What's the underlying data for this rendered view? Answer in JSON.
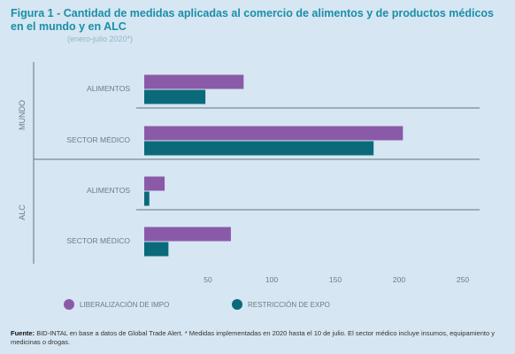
{
  "figure": {
    "label": "Figura 1 -",
    "title": "Cantidad de medidas aplicadas al comercio de alimentos y de productos médicos en el mundo y en ALC",
    "subtitle": "(enero-julio 2020*)"
  },
  "source": {
    "label": "Fuente:",
    "text": "BID-INTAL en base a datos de Global Trade Alert. * Medidas implementadas en 2020 hasta el 10 de julio. El sector médico incluye insumos, equipamiento y medicinas o drogas."
  },
  "colors": {
    "liberalizacion": "#8a5aa8",
    "restriccion": "#0a6a7a",
    "grid": "#5f7583",
    "text": "#6a7d88"
  },
  "chart_data": {
    "type": "bar",
    "orientation": "horizontal",
    "groups": [
      {
        "name": "MUNDO",
        "categories": [
          "ALIMENTOS",
          "SECTOR MÉDICO"
        ],
        "series": [
          {
            "name": "LIBERALIZACIÓN DE IMPO",
            "values": [
              78,
              203
            ]
          },
          {
            "name": "RESTRICCIÓN DE EXPO",
            "values": [
              48,
              180
            ]
          }
        ]
      },
      {
        "name": "ALC",
        "categories": [
          "ALIMENTOS",
          "SECTOR MÉDICO"
        ],
        "series": [
          {
            "name": "LIBERALIZACIÓN DE IMPO",
            "values": [
              16,
              68
            ]
          },
          {
            "name": "RESTRICCIÓN DE EXPO",
            "values": [
              4,
              19
            ]
          }
        ]
      }
    ],
    "xticks": [
      "",
      "50",
      "100",
      "150",
      "200",
      "250"
    ],
    "xlim": [
      0,
      250
    ],
    "grid": false,
    "legend": "bottom"
  }
}
